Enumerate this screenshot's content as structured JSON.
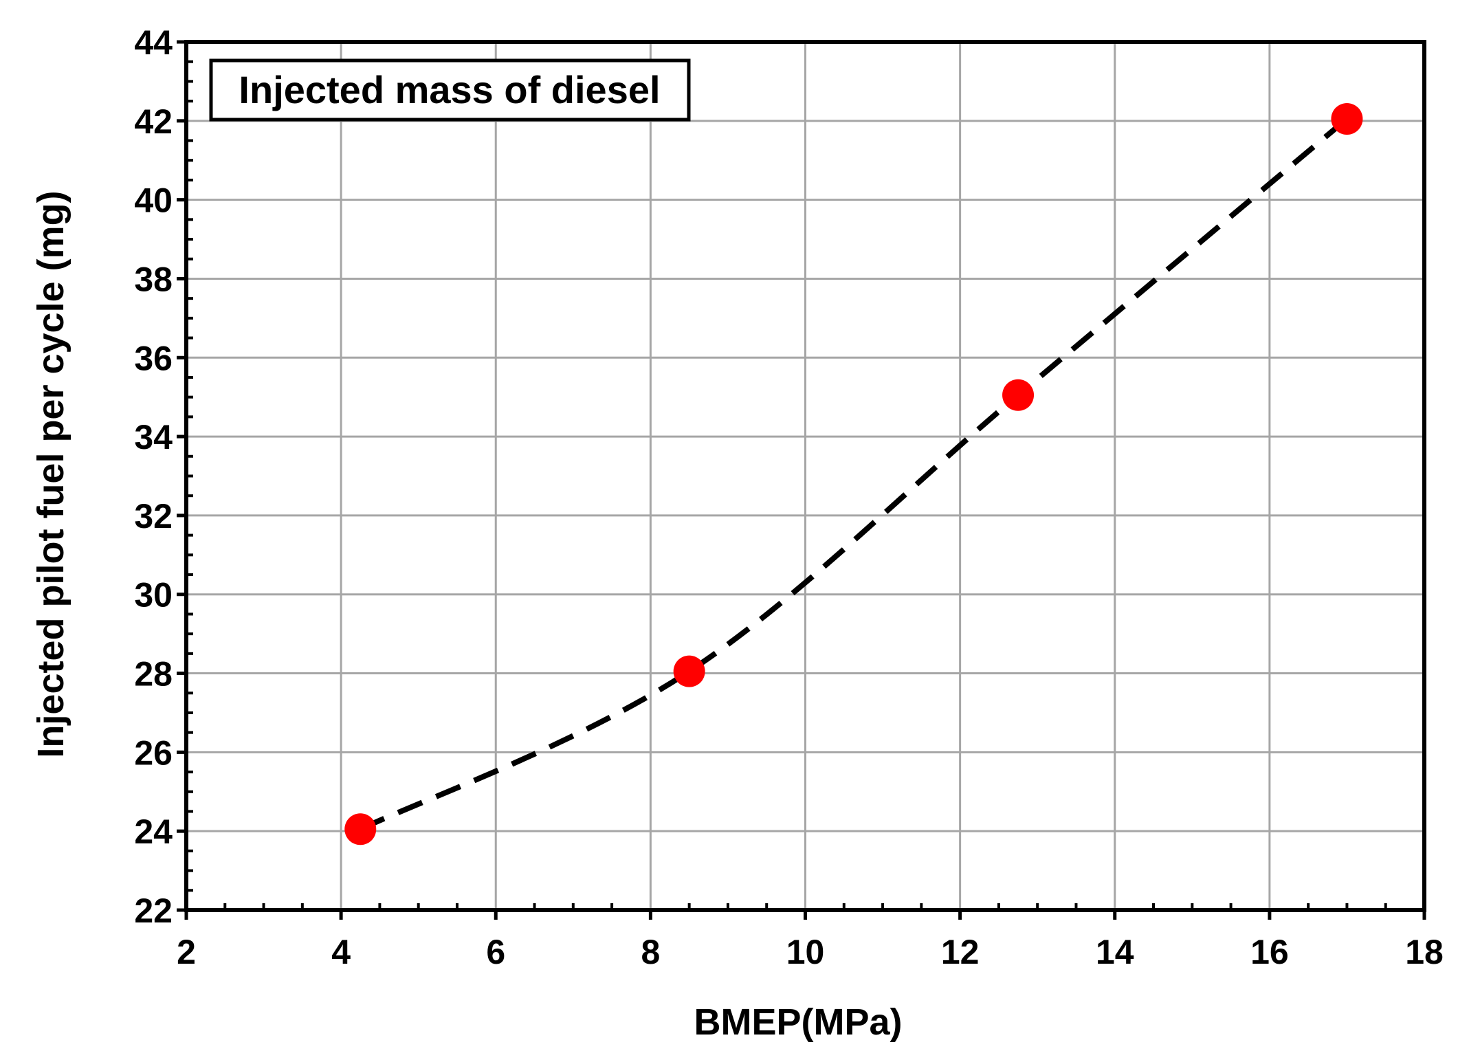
{
  "chart_data": {
    "type": "scatter",
    "title": "",
    "xlabel": "BMEP(MPa)",
    "ylabel": "Injected pilot fuel per cycle (mg)",
    "xlim": [
      2,
      18
    ],
    "ylim": [
      22,
      44
    ],
    "x_ticks": [
      2,
      4,
      6,
      8,
      10,
      12,
      14,
      16,
      18
    ],
    "y_ticks": [
      22,
      24,
      26,
      28,
      30,
      32,
      34,
      36,
      38,
      40,
      42,
      44
    ],
    "x_minor_step": 0.5,
    "y_minor_step": 0.5,
    "grid": true,
    "legend_position": "top-left",
    "series": [
      {
        "name": "Injected mass of diesel",
        "marker_color": "#ff0000",
        "line_color": "#000000",
        "line_style": "dashed",
        "x": [
          4.25,
          8.5,
          12.75,
          17.0
        ],
        "y": [
          24.05,
          28.05,
          35.05,
          42.05
        ]
      }
    ]
  }
}
